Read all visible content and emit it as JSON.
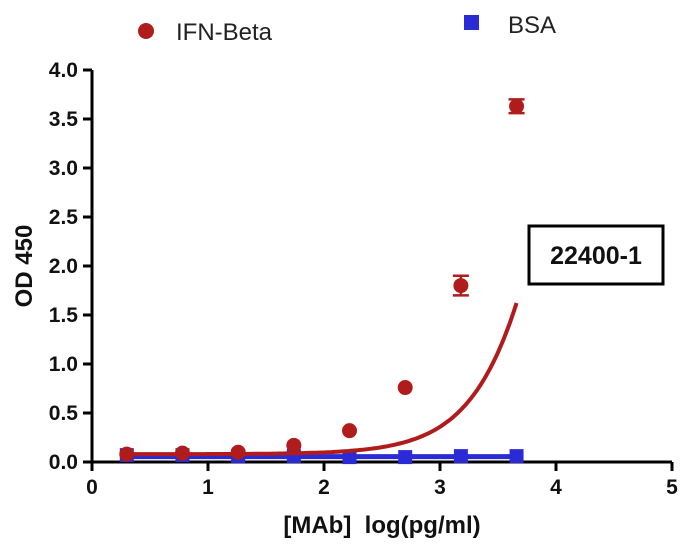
{
  "chart_data": {
    "type": "scatter",
    "xlabel": "[MAb]  log(pg/ml)",
    "ylabel": "OD 450",
    "xlim": [
      0,
      5
    ],
    "ylim": [
      0,
      4
    ],
    "x_ticks": [
      "0",
      "1",
      "2",
      "3",
      "4",
      "5"
    ],
    "y_ticks": [
      "0.0",
      "0.5",
      "1.0",
      "1.5",
      "2.0",
      "2.5",
      "3.0",
      "3.5",
      "4.0"
    ],
    "annotation": "22400-1",
    "legend_position": "top",
    "series": [
      {
        "name": "IFN-Beta",
        "color": "#b01c1c",
        "marker": "circle",
        "fit": "sigmoid",
        "points": [
          {
            "x": 0.3,
            "y": 0.08
          },
          {
            "x": 0.78,
            "y": 0.09
          },
          {
            "x": 1.26,
            "y": 0.1
          },
          {
            "x": 1.74,
            "y": 0.17
          },
          {
            "x": 2.22,
            "y": 0.32
          },
          {
            "x": 2.7,
            "y": 0.76
          },
          {
            "x": 3.18,
            "y": 1.8,
            "err": 0.1
          },
          {
            "x": 3.66,
            "y": 3.63,
            "err": 0.07
          }
        ]
      },
      {
        "name": "BSA",
        "color": "#2b2bd6",
        "marker": "square",
        "fit": "line",
        "points": [
          {
            "x": 0.3,
            "y": 0.07
          },
          {
            "x": 0.78,
            "y": 0.07
          },
          {
            "x": 1.26,
            "y": 0.06
          },
          {
            "x": 1.74,
            "y": 0.06
          },
          {
            "x": 2.22,
            "y": 0.05
          },
          {
            "x": 2.7,
            "y": 0.05
          },
          {
            "x": 3.18,
            "y": 0.06
          },
          {
            "x": 3.66,
            "y": 0.06
          }
        ]
      }
    ]
  }
}
